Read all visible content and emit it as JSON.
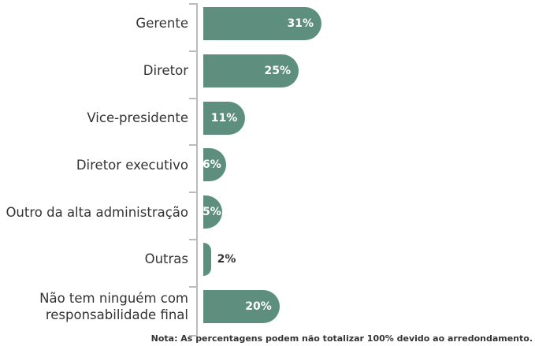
{
  "chart_data": {
    "type": "bar",
    "orientation": "horizontal",
    "categories": [
      "Gerente",
      "Diretor",
      "Vice-presidente",
      "Diretor executivo",
      "Outro da alta administração",
      "Outras",
      "Não tem ninguém com\nresponsabilidade final"
    ],
    "values": [
      31,
      25,
      11,
      6,
      5,
      2,
      20
    ],
    "value_labels": [
      "31%",
      "25%",
      "11%",
      "6%",
      "5%",
      "2%",
      "20%"
    ],
    "color": "#5e8f7e",
    "note": "Nota: As percentagens podem não totalizar 100% devido ao arredondamento."
  }
}
